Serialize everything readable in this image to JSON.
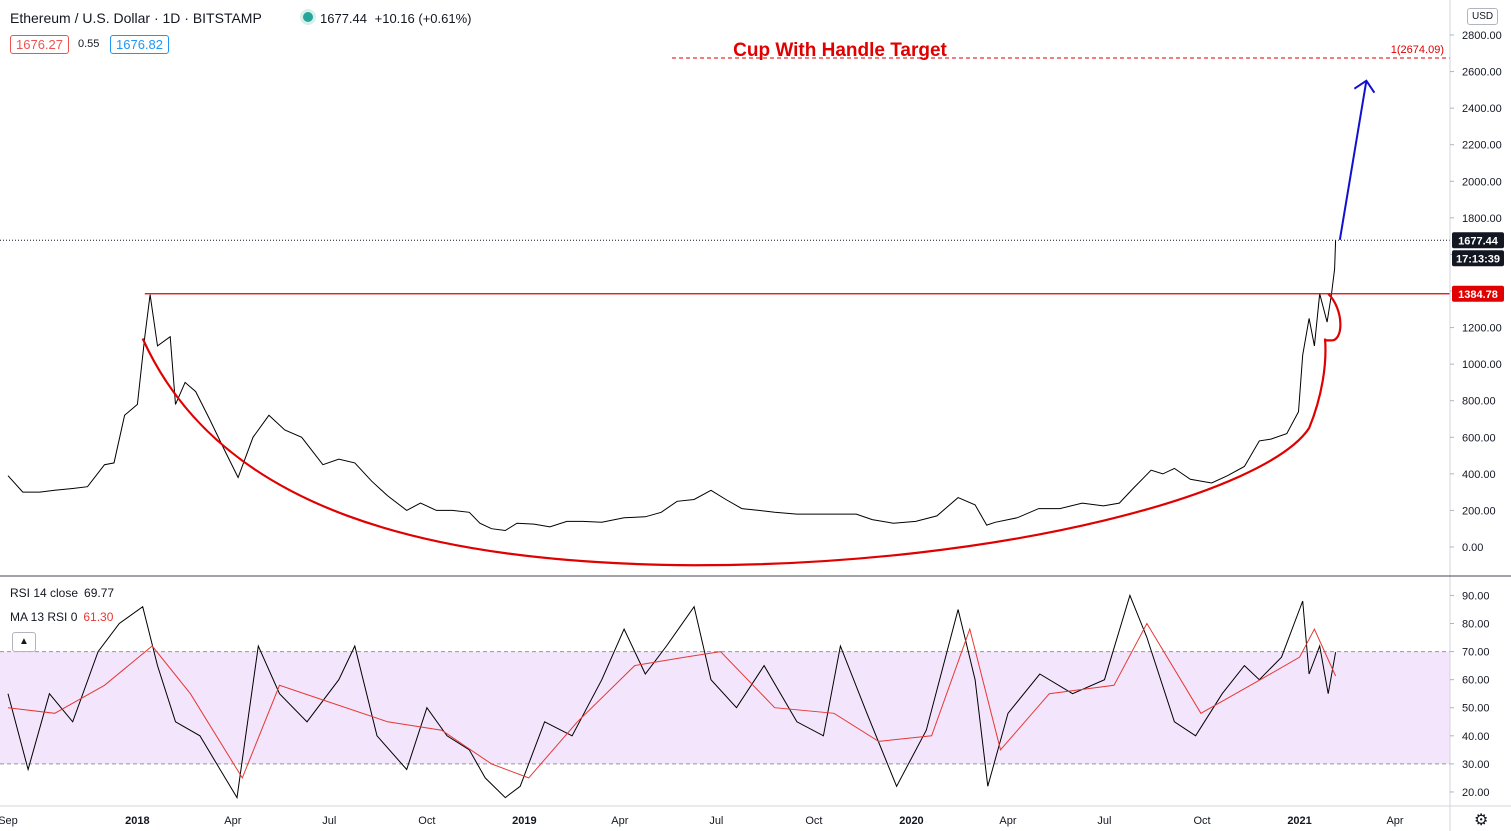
{
  "header": {
    "symbol_title": "Ethereum / U.S. Dollar · 1D · BITSTAMP",
    "last_price": "1677.44",
    "change": "+10.16 (+0.61%)",
    "bid": "1676.27",
    "spread": "0.55",
    "ask": "1676.82",
    "currency": "USD"
  },
  "rsi_panel": {
    "rsi_label": "RSI 14 close",
    "rsi_value": "69.77",
    "ma_label": "MA 13 RSI 0",
    "ma_value": "61.30",
    "collapse_icon": "chevron-up-icon"
  },
  "settings_icon": "gear-icon",
  "colors": {
    "price_line": "#000000",
    "cup_annotation": "#e00000",
    "target_text": "#e00000",
    "arrow": "#1010d0",
    "rsi_line": "#000000",
    "rsi_ma": "#e53935",
    "rsi_band": "#f3e5fb",
    "axis_text": "#131722"
  },
  "chart_data": [
    {
      "type": "line",
      "series": [
        {
          "x": [
            "2017-09-01",
            "2017-09-15",
            "2017-10-01",
            "2017-10-15",
            "2017-11-01",
            "2017-11-15",
            "2017-12-01",
            "2017-12-10",
            "2017-12-20",
            "2018-01-01",
            "2018-01-08",
            "2018-01-13",
            "2018-01-20",
            "2018-02-01",
            "2018-02-06",
            "2018-02-15",
            "2018-02-25",
            "2018-03-10",
            "2018-03-25",
            "2018-04-06",
            "2018-04-20",
            "2018-05-05",
            "2018-05-20",
            "2018-06-05",
            "2018-06-25",
            "2018-07-10",
            "2018-07-25",
            "2018-08-10",
            "2018-08-25",
            "2018-09-12",
            "2018-09-25",
            "2018-10-10",
            "2018-10-25",
            "2018-11-10",
            "2018-11-20",
            "2018-12-01",
            "2018-12-14",
            "2018-12-25",
            "2019-01-10",
            "2019-01-25",
            "2019-02-10",
            "2019-02-25",
            "2019-03-15",
            "2019-04-05",
            "2019-04-25",
            "2019-05-10",
            "2019-05-25",
            "2019-06-10",
            "2019-06-26",
            "2019-07-10",
            "2019-07-25",
            "2019-08-10",
            "2019-08-25",
            "2019-09-15",
            "2019-10-01",
            "2019-10-25",
            "2019-11-10",
            "2019-11-25",
            "2019-12-15",
            "2020-01-05",
            "2020-01-25",
            "2020-02-14",
            "2020-03-01",
            "2020-03-12",
            "2020-03-20",
            "2020-04-10",
            "2020-04-30",
            "2020-05-20",
            "2020-06-10",
            "2020-06-30",
            "2020-07-15",
            "2020-07-28",
            "2020-08-14",
            "2020-08-25",
            "2020-09-05",
            "2020-09-20",
            "2020-10-10",
            "2020-10-25",
            "2020-11-10",
            "2020-11-24",
            "2020-12-05",
            "2020-12-20",
            "2020-12-31",
            "2021-01-04",
            "2021-01-10",
            "2021-01-15",
            "2021-01-20",
            "2021-01-27",
            "2021-01-31",
            "2021-02-03",
            "2021-02-04"
          ],
          "y": [
            390,
            300,
            300,
            310,
            320,
            330,
            450,
            460,
            720,
            780,
            1150,
            1380,
            1100,
            1150,
            780,
            900,
            850,
            700,
            520,
            380,
            600,
            720,
            640,
            600,
            450,
            480,
            460,
            360,
            280,
            200,
            240,
            200,
            200,
            190,
            130,
            100,
            90,
            130,
            125,
            110,
            140,
            140,
            135,
            160,
            165,
            190,
            250,
            260,
            310,
            260,
            210,
            200,
            190,
            180,
            180,
            180,
            180,
            150,
            130,
            140,
            170,
            270,
            230,
            120,
            135,
            160,
            210,
            210,
            240,
            225,
            240,
            320,
            420,
            400,
            430,
            370,
            350,
            390,
            440,
            580,
            590,
            620,
            740,
            1050,
            1250,
            1100,
            1385,
            1230,
            1380,
            1520,
            1677
          ]
        }
      ],
      "yticks": [
        "0.00",
        "200.00",
        "400.00",
        "600.00",
        "800.00",
        "1000.00",
        "1200.00",
        "1400.00",
        "1600.00",
        "1800.00",
        "2000.00",
        "2200.00",
        "2400.00",
        "2600.00",
        "2800.00"
      ],
      "xticks": [
        "Sep",
        "2018",
        "Apr",
        "Jul",
        "Oct",
        "2019",
        "Apr",
        "Jul",
        "Oct",
        "2020",
        "Apr",
        "Jul",
        "Oct",
        "2021",
        "Apr"
      ],
      "ylim": [
        -100,
        2900
      ],
      "resistance_level": 1384.78,
      "resistance_label": "1384.78",
      "last_value_label": "1677.44",
      "countdown_label": "17:13:39",
      "target_value": 2674.09,
      "target_label": "1(2674.09)",
      "annotation": "Cup With Handle Target"
    },
    {
      "type": "line",
      "series": [
        {
          "name": "RSI 14 close",
          "x": [
            "2017-09-01",
            "2017-09-20",
            "2017-10-10",
            "2017-11-01",
            "2017-11-25",
            "2017-12-15",
            "2018-01-06",
            "2018-01-20",
            "2018-02-06",
            "2018-03-01",
            "2018-03-20",
            "2018-04-05",
            "2018-04-25",
            "2018-05-15",
            "2018-06-10",
            "2018-07-10",
            "2018-07-25",
            "2018-08-15",
            "2018-09-12",
            "2018-10-01",
            "2018-10-20",
            "2018-11-10",
            "2018-11-25",
            "2018-12-14",
            "2018-12-28",
            "2019-01-20",
            "2019-02-15",
            "2019-03-15",
            "2019-04-05",
            "2019-04-25",
            "2019-05-15",
            "2019-06-10",
            "2019-06-26",
            "2019-07-20",
            "2019-08-15",
            "2019-09-15",
            "2019-10-10",
            "2019-10-26",
            "2019-11-20",
            "2019-12-18",
            "2020-01-15",
            "2020-02-14",
            "2020-03-01",
            "2020-03-13",
            "2020-04-01",
            "2020-05-01",
            "2020-06-01",
            "2020-07-01",
            "2020-07-25",
            "2020-08-10",
            "2020-09-05",
            "2020-09-25",
            "2020-10-20",
            "2020-11-10",
            "2020-11-24",
            "2020-12-15",
            "2021-01-04",
            "2021-01-10",
            "2021-01-20",
            "2021-01-28",
            "2021-02-04"
          ],
          "y": [
            55,
            28,
            55,
            45,
            70,
            80,
            86,
            65,
            45,
            40,
            28,
            18,
            72,
            55,
            45,
            60,
            72,
            40,
            28,
            50,
            40,
            35,
            25,
            18,
            22,
            45,
            40,
            60,
            78,
            62,
            72,
            86,
            60,
            50,
            65,
            45,
            40,
            72,
            48,
            22,
            42,
            85,
            60,
            22,
            48,
            62,
            55,
            60,
            90,
            75,
            45,
            40,
            55,
            65,
            60,
            68,
            88,
            62,
            72,
            55,
            69.77
          ]
        },
        {
          "name": "MA 13 RSI 0",
          "x": [
            "2017-09-01",
            "2017-10-15",
            "2017-12-01",
            "2018-01-15",
            "2018-02-20",
            "2018-04-10",
            "2018-05-15",
            "2018-07-01",
            "2018-08-25",
            "2018-10-15",
            "2018-12-01",
            "2019-01-05",
            "2019-02-20",
            "2019-04-15",
            "2019-06-01",
            "2019-07-05",
            "2019-08-25",
            "2019-10-20",
            "2019-12-01",
            "2020-01-20",
            "2020-02-25",
            "2020-03-25",
            "2020-05-10",
            "2020-07-10",
            "2020-08-10",
            "2020-09-30",
            "2020-11-25",
            "2021-01-01",
            "2021-01-15",
            "2021-02-04"
          ],
          "y": [
            50,
            48,
            58,
            72,
            55,
            25,
            58,
            52,
            45,
            42,
            30,
            25,
            45,
            65,
            68,
            70,
            50,
            48,
            38,
            40,
            78,
            35,
            55,
            58,
            80,
            48,
            60,
            68,
            78,
            61.3
          ]
        }
      ],
      "yticks": [
        "20.00",
        "30.00",
        "40.00",
        "50.00",
        "60.00",
        "70.00",
        "80.00",
        "90.00"
      ],
      "ylim": [
        15,
        93
      ],
      "band": [
        30,
        70
      ]
    }
  ]
}
